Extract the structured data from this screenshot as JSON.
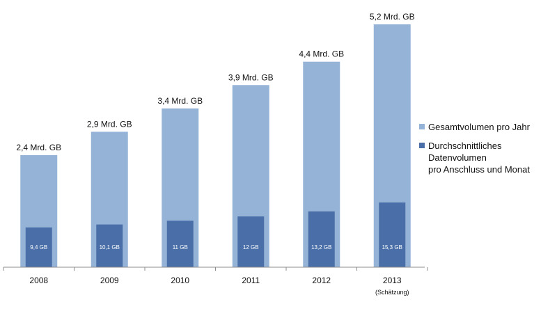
{
  "chart_data": {
    "type": "bar",
    "categories": [
      "2008",
      "2009",
      "2010",
      "2011",
      "2012",
      "2013"
    ],
    "category_sublabels": [
      "",
      "",
      "",
      "",
      "",
      "(Schätzung)"
    ],
    "series": [
      {
        "name": "Gesamtvolumen pro Jahr",
        "color": "#95b3d7",
        "values": [
          2.4,
          2.9,
          3.4,
          3.9,
          4.4,
          5.2
        ],
        "labels": [
          "2,4 Mrd. GB",
          "2,9 Mrd. GB",
          "3,4 Mrd. GB",
          "3,9 Mrd. GB",
          "4,4 Mrd. GB",
          "5,2 Mrd. GB"
        ]
      },
      {
        "name": "Durchschnittliches Datenvolumen pro Anschluss und Monat",
        "name_lines": [
          "Durchschnittliches Datenvolumen",
          "pro Anschluss und Monat"
        ],
        "color": "#4a6fa8",
        "values": [
          9.4,
          10.1,
          11,
          12,
          13.2,
          15.3
        ],
        "labels": [
          "9,4 GB",
          "10,1 GB",
          "11 GB",
          "12 GB",
          "13,2 GB",
          "15,3 GB"
        ]
      }
    ],
    "xlabel": "",
    "ylabel": "",
    "ylim": [
      0,
      5.2
    ],
    "overlay_ylim": [
      0,
      57.4
    ],
    "grid": false,
    "legend_position": "right"
  }
}
